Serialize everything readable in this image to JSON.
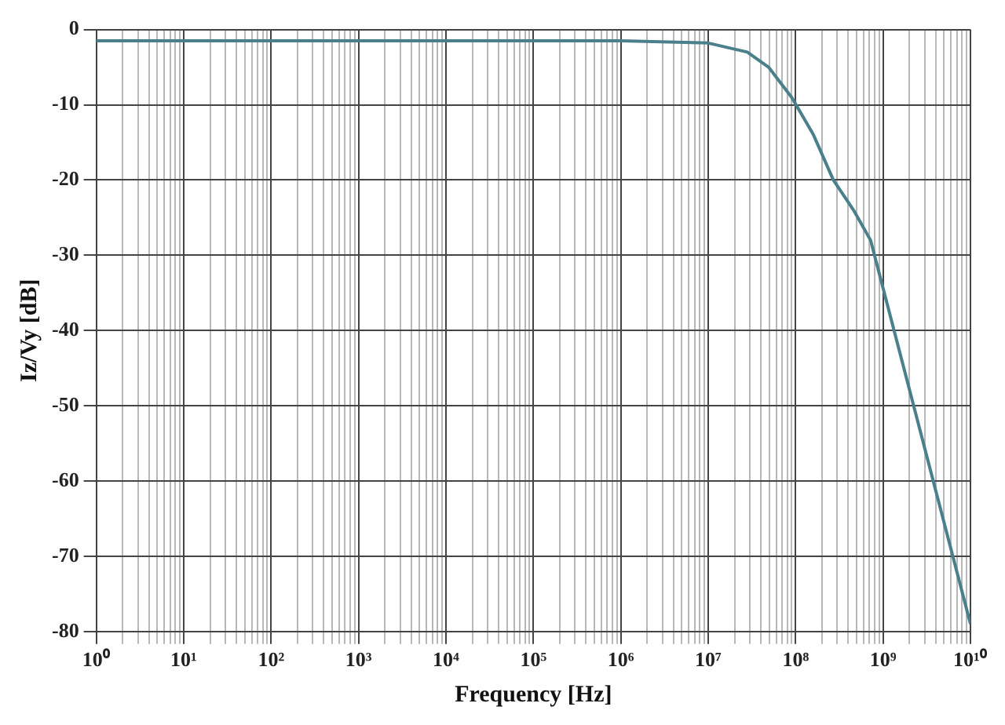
{
  "chart_data": {
    "type": "line",
    "xlabel": "Frequency [Hz]",
    "ylabel": "Iz/Vy [dB]",
    "log": "x",
    "grid": true,
    "legend": false,
    "marker": "none",
    "line_style": "solid",
    "xlim": [
      1,
      10000000000
    ],
    "ylim": [
      -80,
      0
    ],
    "yticks": [
      -80,
      -70,
      -60,
      -50,
      -40,
      -30,
      -20,
      -10,
      0
    ],
    "xticks": [
      {
        "value": 1,
        "label": "10⁰"
      },
      {
        "value": 2,
        "label": null
      },
      {
        "value": 3,
        "label": null
      },
      {
        "value": 4,
        "label": null
      },
      {
        "value": 5,
        "label": null
      },
      {
        "value": 6,
        "label": null
      },
      {
        "value": 7,
        "label": null
      },
      {
        "value": 8,
        "label": null
      },
      {
        "value": 9,
        "label": null
      },
      {
        "value": 10,
        "label": "10¹"
      },
      {
        "value": 20,
        "label": null
      },
      {
        "value": 30,
        "label": null
      },
      {
        "value": 40,
        "label": null
      },
      {
        "value": 50,
        "label": null
      },
      {
        "value": 60,
        "label": null
      },
      {
        "value": 70,
        "label": null
      },
      {
        "value": 80,
        "label": null
      },
      {
        "value": 90,
        "label": null
      },
      {
        "value": 100,
        "label": "10²"
      },
      {
        "value": 200,
        "label": null
      },
      {
        "value": 300,
        "label": null
      },
      {
        "value": 400,
        "label": null
      },
      {
        "value": 500,
        "label": null
      },
      {
        "value": 600,
        "label": null
      },
      {
        "value": 700,
        "label": null
      },
      {
        "value": 800,
        "label": null
      },
      {
        "value": 900,
        "label": null
      },
      {
        "value": 1000,
        "label": "10³"
      },
      {
        "value": 2000,
        "label": null
      },
      {
        "value": 3000,
        "label": null
      },
      {
        "value": 4000,
        "label": null
      },
      {
        "value": 5000,
        "label": null
      },
      {
        "value": 6000,
        "label": null
      },
      {
        "value": 7000,
        "label": null
      },
      {
        "value": 8000,
        "label": null
      },
      {
        "value": 9000,
        "label": null
      },
      {
        "value": 10000,
        "label": "10⁴"
      },
      {
        "value": 20000,
        "label": null
      },
      {
        "value": 30000,
        "label": null
      },
      {
        "value": 40000,
        "label": null
      },
      {
        "value": 50000,
        "label": null
      },
      {
        "value": 60000,
        "label": null
      },
      {
        "value": 70000,
        "label": null
      },
      {
        "value": 80000,
        "label": null
      },
      {
        "value": 90000,
        "label": null
      },
      {
        "value": 100000,
        "label": "10⁵"
      },
      {
        "value": 200000,
        "label": null
      },
      {
        "value": 300000,
        "label": null
      },
      {
        "value": 400000,
        "label": null
      },
      {
        "value": 500000,
        "label": null
      },
      {
        "value": 600000,
        "label": null
      },
      {
        "value": 700000,
        "label": null
      },
      {
        "value": 800000,
        "label": null
      },
      {
        "value": 900000,
        "label": null
      },
      {
        "value": 1000000,
        "label": "10⁶"
      },
      {
        "value": 2000000,
        "label": null
      },
      {
        "value": 3000000,
        "label": null
      },
      {
        "value": 4000000,
        "label": null
      },
      {
        "value": 5000000,
        "label": null
      },
      {
        "value": 6000000,
        "label": null
      },
      {
        "value": 7000000,
        "label": null
      },
      {
        "value": 8000000,
        "label": null
      },
      {
        "value": 9000000,
        "label": null
      },
      {
        "value": 10000000,
        "label": "10⁷"
      },
      {
        "value": 20000000,
        "label": null
      },
      {
        "value": 30000000,
        "label": null
      },
      {
        "value": 40000000,
        "label": null
      },
      {
        "value": 50000000,
        "label": null
      },
      {
        "value": 60000000,
        "label": null
      },
      {
        "value": 70000000,
        "label": null
      },
      {
        "value": 80000000,
        "label": null
      },
      {
        "value": 90000000,
        "label": null
      },
      {
        "value": 100000000,
        "label": "10⁸"
      },
      {
        "value": 200000000,
        "label": null
      },
      {
        "value": 300000000,
        "label": null
      },
      {
        "value": 400000000,
        "label": null
      },
      {
        "value": 500000000,
        "label": null
      },
      {
        "value": 600000000,
        "label": null
      },
      {
        "value": 700000000,
        "label": null
      },
      {
        "value": 800000000,
        "label": null
      },
      {
        "value": 900000000,
        "label": null
      },
      {
        "value": 1000000000,
        "label": "10⁹"
      },
      {
        "value": 2000000000,
        "label": null
      },
      {
        "value": 3000000000,
        "label": null
      },
      {
        "value": 4000000000,
        "label": null
      },
      {
        "value": 5000000000,
        "label": null
      },
      {
        "value": 6000000000,
        "label": null
      },
      {
        "value": 7000000000,
        "label": null
      },
      {
        "value": 8000000000,
        "label": null
      },
      {
        "value": 9000000000,
        "label": null
      },
      {
        "value": 10000000000,
        "label": "10¹⁰"
      }
    ],
    "x": [
      1,
      1000000,
      10000000,
      28000000,
      49000000,
      90000000,
      160000000,
      270000000,
      460000000,
      720000000,
      10000000000
    ],
    "series": [
      {
        "color": "#4a7f8c",
        "values": [
          -1.5,
          -1.5,
          -1.8,
          -3,
          -5,
          -9,
          -14,
          -20,
          -24,
          -28,
          -79
        ]
      }
    ]
  }
}
